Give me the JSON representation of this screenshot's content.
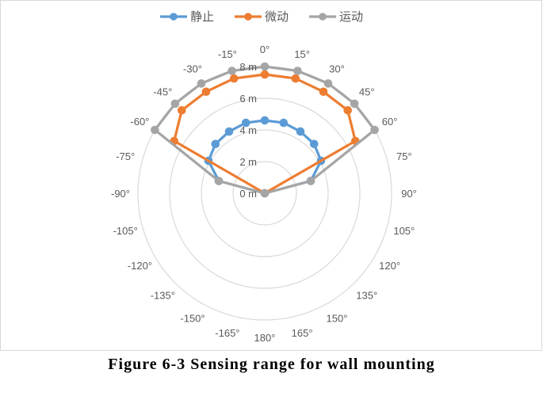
{
  "chart_data": {
    "type": "radar",
    "angles": [
      "0°",
      "15°",
      "30°",
      "45°",
      "60°",
      "75°",
      "90°",
      "105°",
      "120°",
      "135°",
      "150°",
      "165°",
      "180°",
      "-165°",
      "-150°",
      "-135°",
      "-120°",
      "-105°",
      "-90°",
      "-75°",
      "-60°",
      "-45°",
      "-30°",
      "-15°"
    ],
    "radial_axis": {
      "labels": [
        "0 m",
        "2 m",
        "4 m",
        "6 m",
        "8 m"
      ],
      "range": [
        0,
        8
      ]
    },
    "series": [
      {
        "name": "静止",
        "color": "#5b9bd5",
        "values": [
          4.6,
          4.6,
          4.5,
          4.4,
          4.1,
          3.0,
          0,
          0,
          0,
          0,
          0,
          0,
          0,
          0,
          0,
          0,
          0,
          0,
          0,
          3.0,
          4.1,
          4.4,
          4.5,
          4.6
        ]
      },
      {
        "name": "微动",
        "color": "#ed7d31",
        "values": [
          7.5,
          7.5,
          7.4,
          7.4,
          6.6,
          0,
          0,
          0,
          0,
          0,
          0,
          0,
          0,
          0,
          0,
          0,
          0,
          0,
          0,
          0,
          6.6,
          7.4,
          7.4,
          7.5
        ]
      },
      {
        "name": "运动",
        "color": "#a5a5a5",
        "values": [
          8.0,
          8.0,
          8.0,
          8.0,
          8.0,
          3.0,
          0,
          0,
          0,
          0,
          0,
          0,
          0,
          0,
          0,
          0,
          0,
          0,
          0,
          3.0,
          8.0,
          8.0,
          8.0,
          8.0
        ]
      }
    ],
    "legend_position": "top",
    "grid": true
  },
  "caption": "Figure 6-3 Sensing range for wall mounting"
}
